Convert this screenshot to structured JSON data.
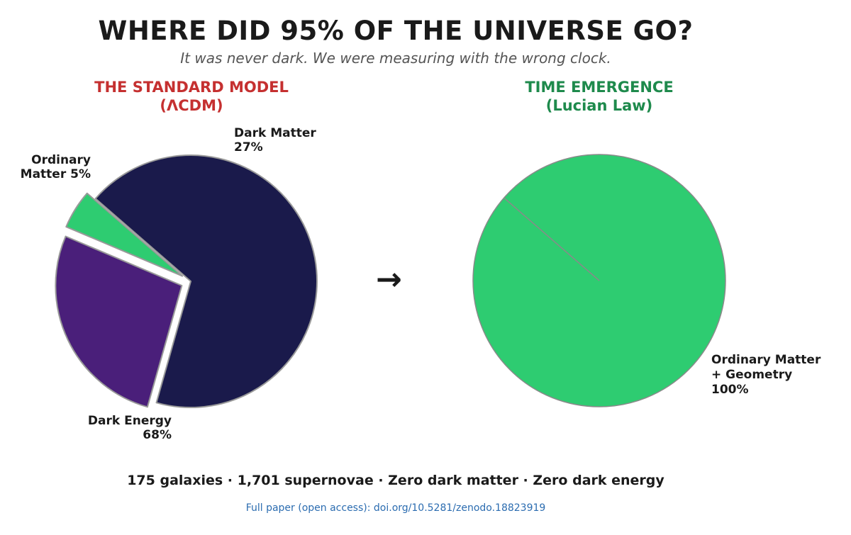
{
  "header": {
    "title": "WHERE DID 95% OF THE UNIVERSE GO?",
    "subtitle": "It was never dark. We were measuring with the wrong clock."
  },
  "panels": {
    "left": {
      "title_line1": "THE STANDARD MODEL",
      "title_line2": "(ΛCDM)",
      "color": "#c53030"
    },
    "right": {
      "title_line1": "TIME EMERGENCE",
      "title_line2": "(Lucian Law)",
      "color": "#1e8a4c"
    }
  },
  "arrow": "→",
  "footer": {
    "stats": "175 galaxies  ·  1,701 supernovae  ·  Zero dark matter  ·  Zero dark energy",
    "link": "Full paper (open access): doi.org/10.5281/zenodo.18823919"
  },
  "chart_data": [
    {
      "type": "pie",
      "slices": [
        {
          "label_line1": "Ordinary",
          "label_line2": "Matter 5%",
          "value": 5,
          "color": "#2ecc71",
          "exploded": true
        },
        {
          "label_line1": "Dark Matter",
          "label_line2": "27%",
          "value": 27,
          "color": "#4a1f7a",
          "exploded": true
        },
        {
          "label_line1": "Dark Energy",
          "label_line2": "68%",
          "value": 68,
          "color": "#1a1a4b",
          "exploded": false
        }
      ]
    },
    {
      "type": "pie",
      "slices": [
        {
          "label_line1": "Ordinary Matter",
          "label_line2": "+ Geometry",
          "label_line3": "100%",
          "value": 100,
          "color": "#2ecc71"
        }
      ]
    }
  ]
}
